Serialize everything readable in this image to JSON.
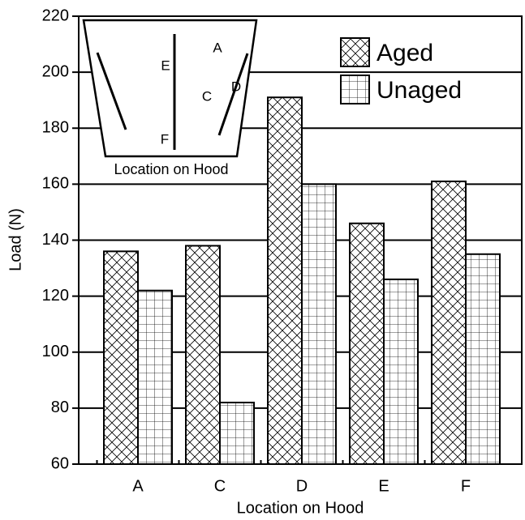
{
  "chart_data": {
    "type": "bar",
    "xlabel": "Location on Hood",
    "ylabel": "Load (N)",
    "categories": [
      "A",
      "C",
      "D",
      "E",
      "F"
    ],
    "series": [
      {
        "name": "Aged",
        "color": "#000000",
        "pattern": "crosshatch",
        "values": [
          136,
          138,
          191,
          146,
          161
        ]
      },
      {
        "name": "Unaged",
        "color": "#000000",
        "pattern": "grid",
        "values": [
          122,
          82,
          160,
          126,
          135
        ]
      }
    ],
    "ylim": [
      60,
      220
    ],
    "yticks": [
      60,
      80,
      100,
      120,
      140,
      160,
      180,
      200,
      220
    ],
    "grid": true,
    "legend": "upper right",
    "inset": {
      "title": "Location on Hood",
      "labels": [
        "A",
        "E",
        "C",
        "D",
        "F"
      ]
    }
  }
}
